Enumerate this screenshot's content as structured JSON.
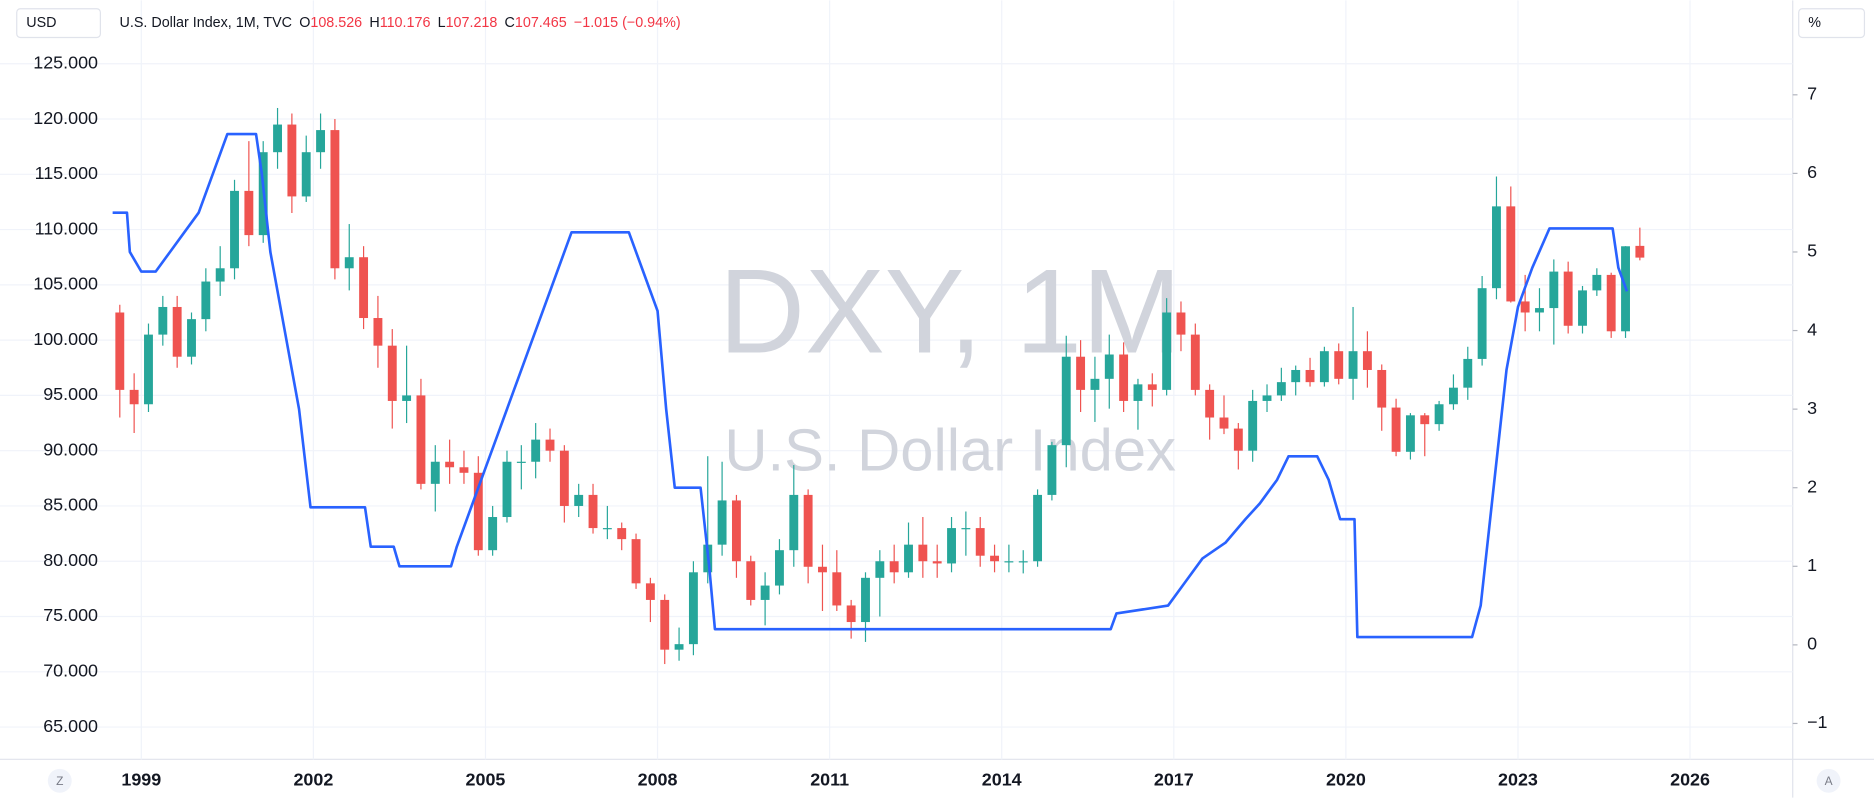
{
  "header": {
    "currency": "USD",
    "title": "U.S. Dollar Index, 1M, TVC",
    "ohlc": [
      {
        "label": "O",
        "value": "108.526"
      },
      {
        "label": "H",
        "value": "110.176"
      },
      {
        "label": "L",
        "value": "107.218"
      },
      {
        "label": "C",
        "value": "107.465"
      }
    ],
    "change": "−1.015 (−0.94%)",
    "unit": "%"
  },
  "watermark": {
    "symbol": "DXY, 1M",
    "name": "U.S. Dollar Index"
  },
  "controls": {
    "left": "Z",
    "right": "A"
  },
  "chart_data": {
    "type": "candlestick",
    "up_color": "#26a69a",
    "down_color": "#ef5350",
    "x": [
      1998.625,
      1998.875,
      1999.125,
      1999.375,
      1999.625,
      1999.875,
      2000.125,
      2000.375,
      2000.625,
      2000.875,
      2001.125,
      2001.375,
      2001.625,
      2001.875,
      2002.125,
      2002.375,
      2002.625,
      2002.875,
      2003.125,
      2003.375,
      2003.625,
      2003.875,
      2004.125,
      2004.375,
      2004.625,
      2004.875,
      2005.125,
      2005.375,
      2005.625,
      2005.875,
      2006.125,
      2006.375,
      2006.625,
      2006.875,
      2007.125,
      2007.375,
      2007.625,
      2007.875,
      2008.125,
      2008.375,
      2008.625,
      2008.875,
      2009.125,
      2009.375,
      2009.625,
      2009.875,
      2010.125,
      2010.375,
      2010.625,
      2010.875,
      2011.125,
      2011.375,
      2011.625,
      2011.875,
      2012.125,
      2012.375,
      2012.625,
      2012.875,
      2013.125,
      2013.375,
      2013.625,
      2013.875,
      2014.125,
      2014.375,
      2014.625,
      2014.875,
      2015.125,
      2015.375,
      2015.625,
      2015.875,
      2016.125,
      2016.375,
      2016.625,
      2016.875,
      2017.125,
      2017.375,
      2017.625,
      2017.875,
      2018.125,
      2018.375,
      2018.625,
      2018.875,
      2019.125,
      2019.375,
      2019.625,
      2019.875,
      2020.125,
      2020.375,
      2020.625,
      2020.875,
      2021.125,
      2021.375,
      2021.625,
      2021.875,
      2022.125,
      2022.375,
      2022.625,
      2022.875,
      2023.125,
      2023.375,
      2023.625,
      2023.875,
      2024.125,
      2024.375,
      2024.625,
      2024.875,
      2025.125
    ],
    "open": [
      102.5,
      95.5,
      94.2,
      100.5,
      103.0,
      98.5,
      101.9,
      105.3,
      106.5,
      113.5,
      109.5,
      117.0,
      119.5,
      113.0,
      117.0,
      119.0,
      106.5,
      107.5,
      102.0,
      99.5,
      94.5,
      95.0,
      87.0,
      89.0,
      88.5,
      88.0,
      81.0,
      84.0,
      89.0,
      89.0,
      91.0,
      90.0,
      85.0,
      86.0,
      83.0,
      83.0,
      82.0,
      78.0,
      76.5,
      72.0,
      72.5,
      79.0,
      81.5,
      85.5,
      80.0,
      76.5,
      77.8,
      81.0,
      86.0,
      79.5,
      79.0,
      76.0,
      74.5,
      78.5,
      80.0,
      79.0,
      81.5,
      80.0,
      79.8,
      83.0,
      83.0,
      80.5,
      80.0,
      80.0,
      80.0,
      86.0,
      90.5,
      98.5,
      95.5,
      96.5,
      98.7,
      94.5,
      96.0,
      95.5,
      102.5,
      100.5,
      95.5,
      93.0,
      92.0,
      90.0,
      94.5,
      95.0,
      96.2,
      97.3,
      96.2,
      99.0,
      96.5,
      99.0,
      97.3,
      93.9,
      89.9,
      93.2,
      92.4,
      94.2,
      95.7,
      98.3,
      104.7,
      112.1,
      103.5,
      102.5,
      102.9,
      106.2,
      101.3,
      104.5,
      105.9,
      100.8,
      108.526
    ],
    "high": [
      103.2,
      97.0,
      101.5,
      104.0,
      104.0,
      102.5,
      106.5,
      108.5,
      114.5,
      118.0,
      118.0,
      121.0,
      120.5,
      118.5,
      120.5,
      120.0,
      110.5,
      108.5,
      104.0,
      101.0,
      99.5,
      96.5,
      90.5,
      91.0,
      90.0,
      89.5,
      85.0,
      90.0,
      90.5,
      92.5,
      92.0,
      90.5,
      87.0,
      87.0,
      85.0,
      83.5,
      82.5,
      78.5,
      77.0,
      74.0,
      80.0,
      89.5,
      89.0,
      86.0,
      80.5,
      79.0,
      82.0,
      88.7,
      86.5,
      81.5,
      81.0,
      76.5,
      79.0,
      81.0,
      81.5,
      83.5,
      84.0,
      81.5,
      84.0,
      84.5,
      84.0,
      81.5,
      81.5,
      81.0,
      86.5,
      90.8,
      100.4,
      100.0,
      98.5,
      100.5,
      99.8,
      96.5,
      97.0,
      103.8,
      103.5,
      101.5,
      96.0,
      95.0,
      92.5,
      95.5,
      96.0,
      97.5,
      97.7,
      98.4,
      99.4,
      99.7,
      103.0,
      100.8,
      97.8,
      94.7,
      93.4,
      93.4,
      94.5,
      96.9,
      99.4,
      105.8,
      114.8,
      113.9,
      105.9,
      104.7,
      107.3,
      107.1,
      104.9,
      106.5,
      106.1,
      108.5,
      110.176
    ],
    "low": [
      93.0,
      91.6,
      93.5,
      99.5,
      97.5,
      97.8,
      100.8,
      104.0,
      105.5,
      108.5,
      108.8,
      115.5,
      111.5,
      112.5,
      115.5,
      105.5,
      104.5,
      101.0,
      97.5,
      92.0,
      92.5,
      86.5,
      84.5,
      87.0,
      87.0,
      80.5,
      80.5,
      83.5,
      86.5,
      87.5,
      89.0,
      83.5,
      84.0,
      82.5,
      82.0,
      81.0,
      77.5,
      74.5,
      70.7,
      71.0,
      71.5,
      78.0,
      80.5,
      78.5,
      76.0,
      74.2,
      77.0,
      79.5,
      78.0,
      75.5,
      75.5,
      73.0,
      72.7,
      75.0,
      78.0,
      78.5,
      78.5,
      78.5,
      79.0,
      80.5,
      79.5,
      79.0,
      79.0,
      78.9,
      79.5,
      85.5,
      88.5,
      93.5,
      92.6,
      93.8,
      93.5,
      91.9,
      94.0,
      95.0,
      99.0,
      95.0,
      91.0,
      91.5,
      88.3,
      89.0,
      93.5,
      94.5,
      95.0,
      95.8,
      95.8,
      96.0,
      94.6,
      95.7,
      91.8,
      89.5,
      89.2,
      89.5,
      91.8,
      93.7,
      94.6,
      97.7,
      103.7,
      103.4,
      100.8,
      100.8,
      99.6,
      100.6,
      100.6,
      104.0,
      100.2,
      100.2,
      107.218
    ],
    "close": [
      95.5,
      94.2,
      100.5,
      103.0,
      98.5,
      101.9,
      105.3,
      106.5,
      113.5,
      109.5,
      117.0,
      119.5,
      113.0,
      117.0,
      119.0,
      106.5,
      107.5,
      102.0,
      99.5,
      94.5,
      95.0,
      87.0,
      89.0,
      88.5,
      88.0,
      81.0,
      84.0,
      89.0,
      89.0,
      91.0,
      90.0,
      85.0,
      86.0,
      83.0,
      83.0,
      82.0,
      78.0,
      76.5,
      72.0,
      72.5,
      79.0,
      81.5,
      85.5,
      80.0,
      76.5,
      77.8,
      81.0,
      86.0,
      79.5,
      79.0,
      76.0,
      74.5,
      78.5,
      80.0,
      79.0,
      81.5,
      80.0,
      79.8,
      83.0,
      83.0,
      80.5,
      80.0,
      80.0,
      80.0,
      86.0,
      90.5,
      98.5,
      95.5,
      96.5,
      98.7,
      94.5,
      96.0,
      95.5,
      102.5,
      100.5,
      95.5,
      93.0,
      92.0,
      90.0,
      94.5,
      95.0,
      96.2,
      97.3,
      96.2,
      99.0,
      96.5,
      99.0,
      97.3,
      93.9,
      89.9,
      93.2,
      92.4,
      94.2,
      95.7,
      98.3,
      104.7,
      112.1,
      103.5,
      102.5,
      102.9,
      106.2,
      101.3,
      104.5,
      105.9,
      100.8,
      108.49,
      107.465
    ],
    "overlay": {
      "type": "line",
      "axis": "y2",
      "color": "#2962ff",
      "x": [
        1998.5,
        1998.75,
        1998.8,
        1999.0,
        1999.25,
        1999.5,
        1999.75,
        2000.0,
        2000.25,
        2000.5,
        2000.75,
        2001.0,
        2001.1,
        2001.25,
        2001.5,
        2001.75,
        2001.95,
        2002.5,
        2002.9,
        2003.0,
        2003.4,
        2003.5,
        2004.4,
        2004.5,
        2004.75,
        2005.0,
        2005.25,
        2005.5,
        2005.75,
        2006.0,
        2006.25,
        2006.5,
        2007.5,
        2007.75,
        2008.0,
        2008.15,
        2008.3,
        2008.75,
        2008.9,
        2009.0,
        2010.0,
        2015.9,
        2016.0,
        2016.9,
        2017.2,
        2017.5,
        2017.9,
        2018.25,
        2018.5,
        2018.8,
        2019.0,
        2019.5,
        2019.7,
        2019.9,
        2020.15,
        2020.2,
        2022.2,
        2022.35,
        2022.5,
        2022.65,
        2022.8,
        2023.0,
        2023.25,
        2023.55,
        2024.65,
        2024.75,
        2024.9
      ],
      "values": [
        5.5,
        5.5,
        5.0,
        4.75,
        4.75,
        5.0,
        5.25,
        5.5,
        6.0,
        6.5,
        6.5,
        6.5,
        6.0,
        5.0,
        4.0,
        3.0,
        1.75,
        1.75,
        1.75,
        1.25,
        1.25,
        1.0,
        1.0,
        1.25,
        1.75,
        2.25,
        2.75,
        3.25,
        3.75,
        4.25,
        4.75,
        5.25,
        5.25,
        4.75,
        4.25,
        3.0,
        2.0,
        2.0,
        1.0,
        0.2,
        0.2,
        0.2,
        0.4,
        0.5,
        0.8,
        1.1,
        1.3,
        1.6,
        1.8,
        2.1,
        2.4,
        2.4,
        2.1,
        1.6,
        1.6,
        0.1,
        0.1,
        0.5,
        1.5,
        2.5,
        3.5,
        4.3,
        4.8,
        5.3,
        5.3,
        4.8,
        4.5
      ]
    },
    "xlim": [
      1998.37,
      2027.79
    ],
    "xticks": [
      1999,
      2002,
      2005,
      2008,
      2011,
      2014,
      2017,
      2020,
      2023,
      2026
    ],
    "ylim": [
      62.405,
      127.486
    ],
    "yticks": [
      {
        "value": 65,
        "label": "65.000"
      },
      {
        "value": 70,
        "label": "70.000"
      },
      {
        "value": 75,
        "label": "75.000"
      },
      {
        "value": 80,
        "label": "80.000"
      },
      {
        "value": 85,
        "label": "85.000"
      },
      {
        "value": 90,
        "label": "90.000"
      },
      {
        "value": 95,
        "label": "95.000"
      },
      {
        "value": 100,
        "label": "100.000"
      },
      {
        "value": 105,
        "label": "105.000"
      },
      {
        "value": 110,
        "label": "110.000"
      },
      {
        "value": 115,
        "label": "115.000"
      },
      {
        "value": 120,
        "label": "120.000"
      },
      {
        "value": 125,
        "label": "125.000"
      }
    ],
    "y2lim": [
      -1.411,
      7.745
    ],
    "y2ticks": [
      {
        "value": -1,
        "label": "−1"
      },
      0,
      1,
      2,
      3,
      4,
      5,
      6,
      7
    ],
    "grid": true
  }
}
